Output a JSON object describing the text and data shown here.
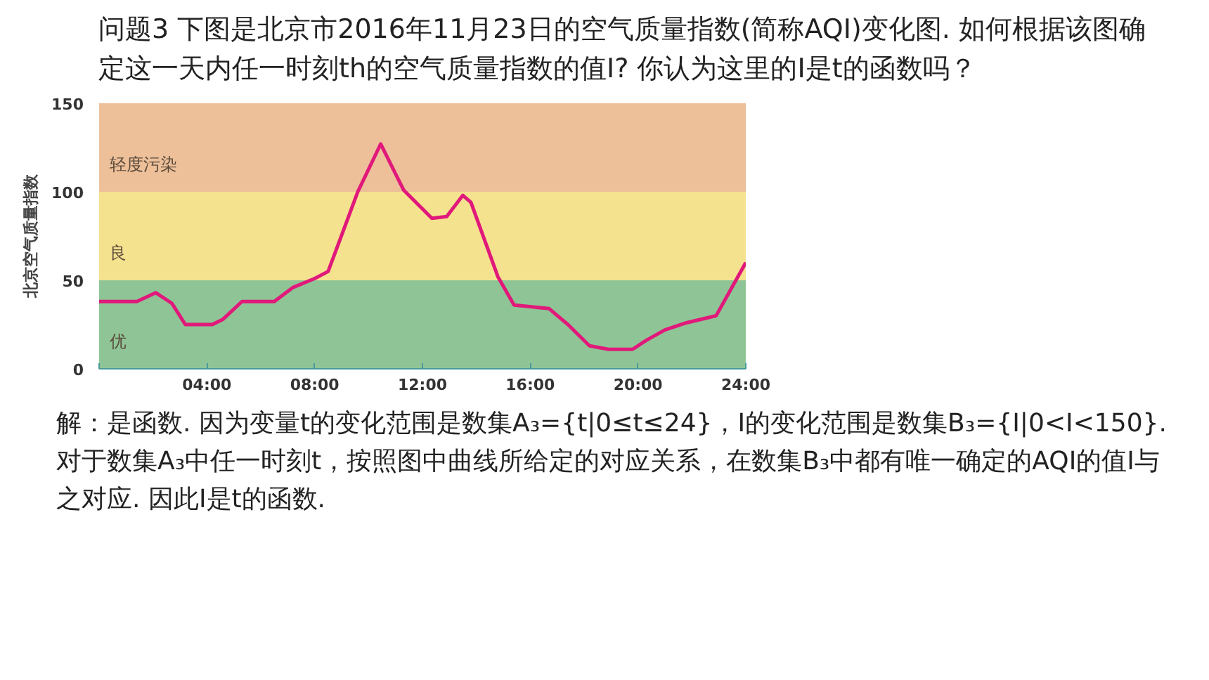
{
  "chart_data": {
    "type": "line",
    "title": "问题3  下图是北京市2016年11月23日的空气质量指数(简称AQI)变化图. 如何根据该图确定这一天内任一时刻th的空气质量指数的值I? 你认为这里的I是t的函数吗？",
    "ylabel": "北京空气质量指数",
    "annotations": [
      "解：是函数.  因为变量t的变化范围是数集A₃={t|0≤t≤24}，I的变化范围是数集B₃={I|0<I<150}. 对于数集A₃中任一时刻t，按照图中曲线所给定的对应关系，在数集B₃中都有唯一确定的AQI的值I与之对应. 因此I是t的函数."
    ],
    "xlim": [
      0,
      24
    ],
    "ylim": [
      0,
      150
    ],
    "xticks": [
      {
        "value": 0,
        "label": null
      },
      {
        "value": 4,
        "label": "04:00"
      },
      {
        "value": 8,
        "label": "08:00"
      },
      {
        "value": 12,
        "label": "12:00"
      },
      {
        "value": 16,
        "label": "16:00"
      },
      {
        "value": 20,
        "label": "20:00"
      },
      {
        "value": 24,
        "label": "24:00"
      }
    ],
    "yticks": [
      0,
      50,
      100,
      150
    ],
    "marker": "none",
    "line_style": "solid",
    "bands": [
      {
        "axis": "y",
        "from": 0,
        "to": 50,
        "label": "优",
        "color": "#8fc596"
      },
      {
        "axis": "y",
        "from": 50,
        "to": 100,
        "label": "良",
        "color": "#f5e28f"
      },
      {
        "axis": "y",
        "from": 100,
        "to": 150,
        "label": "轻度污染",
        "color": "#edc09a"
      }
    ],
    "series": [
      {
        "color": "#e0197a",
        "x": [
          0,
          1.4,
          2.1,
          2.7,
          3.2,
          4.2,
          4.6,
          5.3,
          6.5,
          7.2,
          8.0,
          8.5,
          9.6,
          10.45,
          11.3,
          12.35,
          12.9,
          13.5,
          13.8,
          14.8,
          15.4,
          16.7,
          17.4,
          18.2,
          18.9,
          19.8,
          20.3,
          21.0,
          21.8,
          22.9,
          24
        ],
        "values": [
          38,
          38,
          43,
          37,
          25,
          25,
          28,
          38,
          38,
          46,
          51,
          55,
          100,
          127,
          101,
          85,
          86,
          98,
          94,
          52,
          36,
          34,
          25,
          13,
          11,
          11,
          16,
          22,
          26,
          30,
          60
        ]
      }
    ]
  }
}
